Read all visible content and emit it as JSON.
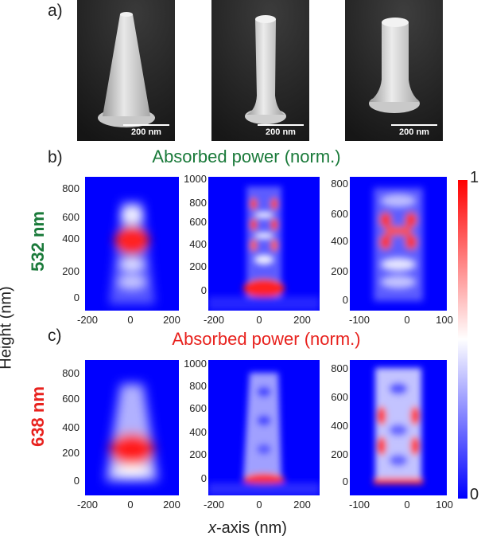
{
  "panels": {
    "a": {
      "label": "a)",
      "scale_label": "200 nm"
    },
    "b": {
      "label": "b)",
      "title": "Absorbed power (norm.)",
      "wavelength": "532 nm"
    },
    "c": {
      "label": "c)",
      "title": "Absorbed power (norm.)",
      "wavelength": "638 nm"
    }
  },
  "axes": {
    "y_title": "Height (nm)",
    "x_title_italic": "x",
    "x_title_rest": "-axis (nm)",
    "col1_y": [
      "800",
      "600",
      "400",
      "200",
      "0"
    ],
    "col2_y": [
      "1000",
      "800",
      "600",
      "400",
      "200",
      "0"
    ],
    "col3_y": [
      "800",
      "600",
      "400",
      "200",
      "0"
    ],
    "col1_x": [
      "-200",
      "0",
      "200"
    ],
    "col2_x": [
      "-200",
      "0",
      "200"
    ],
    "col3_x": [
      "-100",
      "0",
      "100"
    ]
  },
  "colorbar": {
    "max": "1",
    "min": "0"
  },
  "colors": {
    "low": "#0000ff",
    "mid": "#ffffff",
    "high": "#ff0000",
    "green_title": "#1a7a3a",
    "red_title": "#e8221e",
    "sem_dark": "#1a1a1a",
    "sem_light": "#e6e6e6"
  }
}
